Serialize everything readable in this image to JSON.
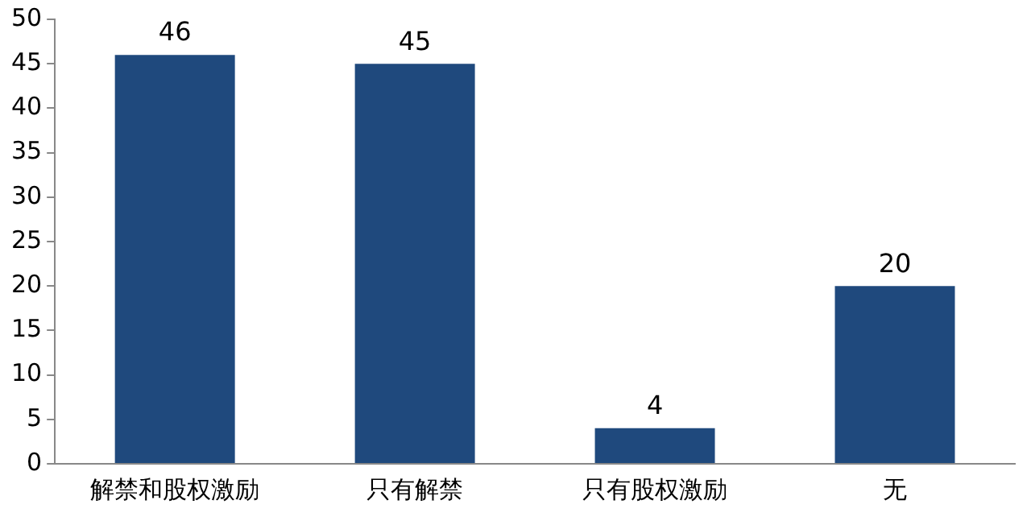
{
  "chart_data": {
    "type": "bar",
    "categories": [
      "解禁和股权激励",
      "只有解禁",
      "只有股权激励",
      "无"
    ],
    "values": [
      46,
      45,
      4,
      20
    ],
    "color": "#1f497d",
    "ylim": [
      0,
      50
    ],
    "yticks": [
      0,
      5,
      10,
      15,
      20,
      25,
      30,
      35,
      40,
      45,
      50
    ],
    "grid": false,
    "data_labels": true
  }
}
